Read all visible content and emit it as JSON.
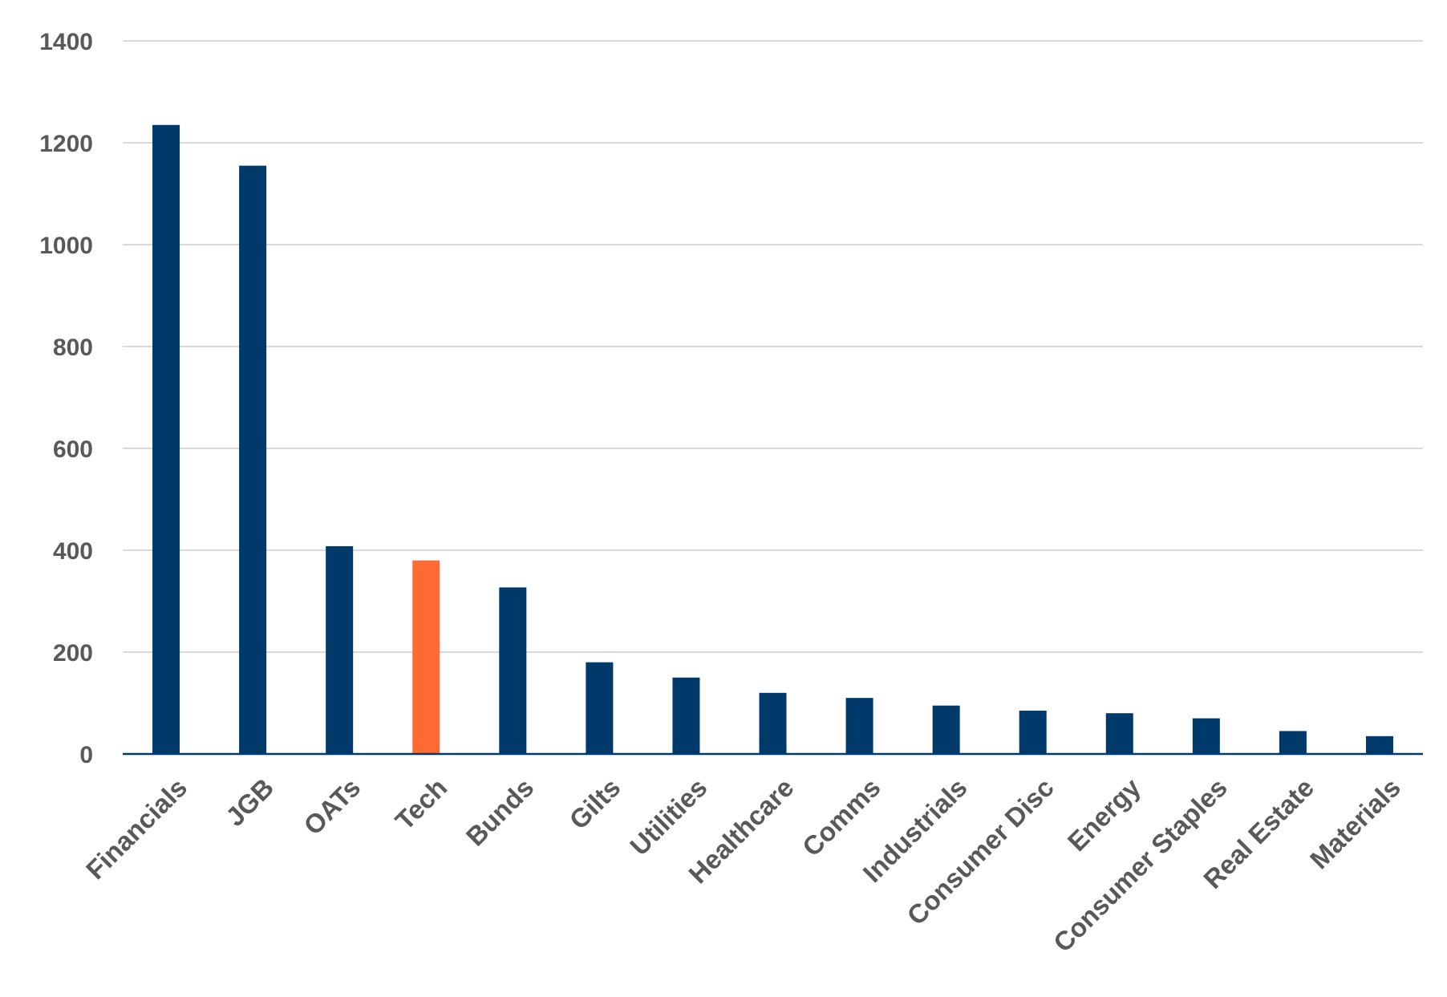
{
  "chart_data": {
    "type": "bar",
    "categories": [
      "Financials",
      "JGB",
      "OATs",
      "Tech",
      "Bunds",
      "Gilts",
      "Utilities",
      "Healthcare",
      "Comms",
      "Industrials",
      "Consumer Disc",
      "Energy",
      "Consumer Staples",
      "Real Estate",
      "Materials"
    ],
    "values": [
      1235,
      1155,
      408,
      380,
      327,
      180,
      150,
      120,
      110,
      95,
      85,
      80,
      70,
      45,
      35
    ],
    "bar_colors": [
      "#003a6b",
      "#003a6b",
      "#003a6b",
      "#ff6a33",
      "#003a6b",
      "#003a6b",
      "#003a6b",
      "#003a6b",
      "#003a6b",
      "#003a6b",
      "#003a6b",
      "#003a6b",
      "#003a6b",
      "#003a6b",
      "#003a6b"
    ],
    "ylim": [
      0,
      1400
    ],
    "yticks": [
      "0",
      "200",
      "400",
      "600",
      "800",
      "1000",
      "1200",
      "1400"
    ],
    "grid": true,
    "legend": "none"
  }
}
